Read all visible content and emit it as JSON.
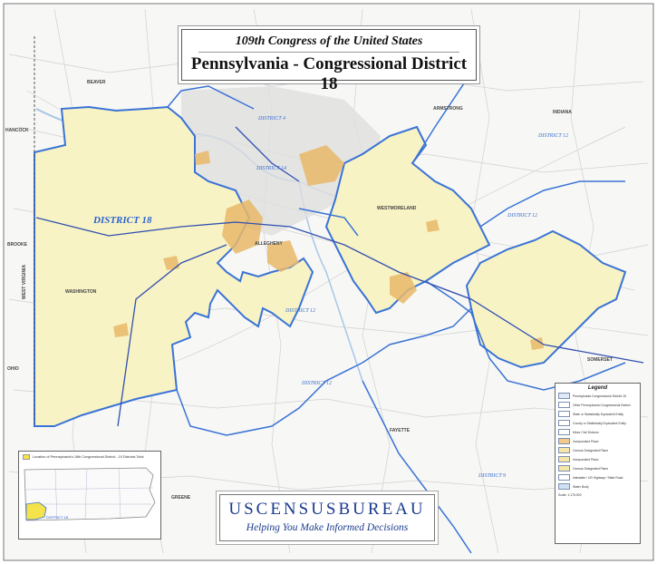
{
  "title": {
    "subtitle": "109th Congress of the United States",
    "main": "Pennsylvania - Congressional District 18"
  },
  "agency": {
    "name": "USCENSUSBUREAU",
    "tagline": "Helping You Make Informed Decisions"
  },
  "legend": {
    "title": "Legend",
    "items": [
      {
        "text": "Pennsylvania Congressional District 18",
        "color": "#dfe8f6"
      },
      {
        "text": "Other Pennsylvania Congressional District",
        "color": "#ffffff"
      },
      {
        "text": "State or Statistically Equivalent Entity",
        "color": "#ffffff"
      },
      {
        "text": "County or Statistically Equivalent Entity",
        "color": "#ffffff"
      },
      {
        "text": "Minor Civil Division",
        "color": "#ffffff"
      },
      {
        "text": "Incorporated Place",
        "color": "#f4c88a"
      },
      {
        "text": "Census Designated Place",
        "color": "#f6e6a8"
      },
      {
        "text": "Incorporated Place",
        "color": "#f6e6a8"
      },
      {
        "text": "Census Designated Place",
        "color": "#f6e6a8"
      },
      {
        "text": "Interstate / US Highway / State Road",
        "color": "#ffffff"
      },
      {
        "text": "Water Body",
        "color": "#cfe2f5"
      }
    ],
    "scale": "Scale: 1:176,000"
  },
  "inset": {
    "caption": "Location of Pennsylvania's 18th Congressional District - 19 Districts Total",
    "district_label": "DISTRICT 18"
  },
  "labels": {
    "district18": "DISTRICT 18",
    "district4": "DISTRICT 4",
    "district14": "DISTRICT 14",
    "district12a": "DISTRICT 12",
    "district12b": "DISTRICT 12",
    "district12c": "DISTRICT 12",
    "district12d": "DISTRICT 12",
    "district9": "DISTRICT 9",
    "beaver": "BEAVER",
    "armstrong": "ARMSTRONG",
    "indiana": "INDIANA",
    "westmoreland": "WESTMORELAND",
    "allegheny": "ALLEGHENY",
    "washington": "WASHINGTON",
    "fayette": "FAYETTE",
    "greene": "GREENE",
    "somerset": "SOMERSET",
    "brooke": "BROOKE",
    "hancock": "HANCOCK",
    "ohio": "OHIO",
    "wv": "WEST VIRGINIA"
  },
  "colors": {
    "district18_fill": "#f8f3c4",
    "boundary": "#3a73d6",
    "place": "#e8b96a",
    "road": "#c9c9c9",
    "interstate": "#3050b0"
  }
}
